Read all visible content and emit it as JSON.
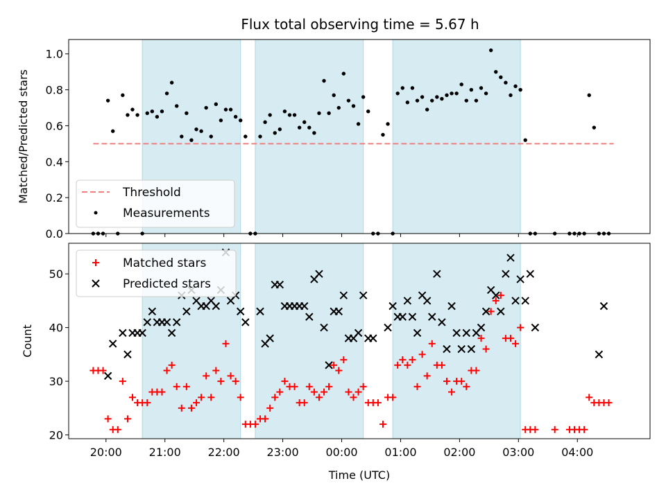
{
  "chart_data": [
    {
      "type": "scatter",
      "title": "Flux total observing time = 5.67 h",
      "xlabel": "",
      "ylabel": "Matched/Predicted stars",
      "ylim": [
        0,
        1.08
      ],
      "xlim": [
        "19:22",
        "05:14"
      ],
      "yticks": [
        "0.0",
        "0.2",
        "0.4",
        "0.6",
        "0.8",
        "1.0"
      ],
      "grid": false,
      "legend_position": "lower-left",
      "observing_windows": [
        [
          "20:37",
          "22:17"
        ],
        [
          "22:32",
          "00:22"
        ],
        [
          "00:52",
          "03:02"
        ]
      ],
      "series": [
        {
          "name": "Threshold",
          "style": "dashed-line",
          "color": "#f08080",
          "x": [
            "19:47",
            "04:37"
          ],
          "y": [
            0.5,
            0.5
          ]
        },
        {
          "name": "Measurements",
          "style": "dot",
          "color": "#000000",
          "x": [
            "19:47",
            "19:52",
            "19:57",
            "20:02",
            "20:07",
            "20:12",
            "20:17",
            "20:22",
            "20:27",
            "20:32",
            "20:37",
            "20:42",
            "20:47",
            "20:52",
            "20:57",
            "21:02",
            "21:07",
            "21:12",
            "21:17",
            "21:22",
            "21:27",
            "21:32",
            "21:37",
            "21:42",
            "21:47",
            "21:52",
            "21:57",
            "22:02",
            "22:07",
            "22:12",
            "22:17",
            "22:22",
            "22:27",
            "22:32",
            "22:37",
            "22:42",
            "22:47",
            "22:52",
            "22:57",
            "23:02",
            "23:07",
            "23:12",
            "23:17",
            "23:22",
            "23:27",
            "23:32",
            "23:37",
            "23:42",
            "23:47",
            "23:52",
            "23:57",
            "00:02",
            "00:07",
            "00:12",
            "00:17",
            "00:22",
            "00:27",
            "00:32",
            "00:37",
            "00:42",
            "00:47",
            "00:52",
            "00:57",
            "01:02",
            "01:07",
            "01:12",
            "01:17",
            "01:22",
            "01:27",
            "01:32",
            "01:37",
            "01:42",
            "01:47",
            "01:52",
            "01:57",
            "02:02",
            "02:07",
            "02:12",
            "02:17",
            "02:22",
            "02:27",
            "02:32",
            "02:37",
            "02:42",
            "02:47",
            "02:52",
            "02:57",
            "03:02",
            "03:07",
            "03:12",
            "03:17",
            "03:37",
            "03:52",
            "03:57",
            "04:02",
            "04:07",
            "04:12",
            "04:17",
            "04:22",
            "04:27",
            "04:32"
          ],
          "y": [
            0,
            0,
            0,
            0.74,
            0.57,
            0,
            0.77,
            0.66,
            0.69,
            0.66,
            0,
            0.67,
            0.68,
            0.65,
            0.68,
            0.78,
            0.84,
            0.71,
            0.54,
            0.67,
            0.52,
            0.58,
            0.57,
            0.7,
            0.54,
            0.72,
            0.63,
            0.69,
            0.69,
            0.65,
            0.63,
            0.54,
            0,
            0,
            0.54,
            0.62,
            0.66,
            0.56,
            0.58,
            0.68,
            0.66,
            0.66,
            0.59,
            0.62,
            0.59,
            0.56,
            0.67,
            0.85,
            0.67,
            0.77,
            0.7,
            0.89,
            0.74,
            0.71,
            0.61,
            0.76,
            0.68,
            0,
            0,
            0.55,
            0.61,
            0,
            0.78,
            0.81,
            0.73,
            0.81,
            0.74,
            0.76,
            0.69,
            0.74,
            0.76,
            0.75,
            0.77,
            0.78,
            0.78,
            0.83,
            0.74,
            0.8,
            0.74,
            0.81,
            0.78,
            1.02,
            0.9,
            0.87,
            0.84,
            0.77,
            0.82,
            0.8,
            0.52,
            0,
            0,
            0,
            0,
            0,
            0,
            0,
            0.77,
            0.59,
            0,
            0,
            0
          ]
        }
      ]
    },
    {
      "type": "scatter",
      "title": "",
      "xlabel": "Time (UTC)",
      "ylabel": "Count",
      "ylim": [
        19.3,
        55.7
      ],
      "xlim": [
        "19:22",
        "05:14"
      ],
      "xticks": [
        "20:00",
        "21:00",
        "22:00",
        "23:00",
        "00:00",
        "01:00",
        "02:00",
        "03:00",
        "04:00"
      ],
      "yticks": [
        "20",
        "30",
        "40",
        "50"
      ],
      "grid": false,
      "legend_position": "top-left",
      "observing_windows": [
        [
          "20:37",
          "22:17"
        ],
        [
          "22:32",
          "00:22"
        ],
        [
          "00:52",
          "03:02"
        ]
      ],
      "series": [
        {
          "name": "Matched stars",
          "style": "plus",
          "color": "#ff0000",
          "x": [
            "19:47",
            "19:52",
            "19:57",
            "20:02",
            "20:07",
            "20:12",
            "20:17",
            "20:22",
            "20:27",
            "20:32",
            "20:37",
            "20:42",
            "20:47",
            "20:52",
            "20:57",
            "21:02",
            "21:07",
            "21:12",
            "21:17",
            "21:22",
            "21:27",
            "21:32",
            "21:37",
            "21:42",
            "21:47",
            "21:52",
            "21:57",
            "22:02",
            "22:07",
            "22:12",
            "22:17",
            "22:22",
            "22:27",
            "22:32",
            "22:37",
            "22:42",
            "22:47",
            "22:52",
            "22:57",
            "23:02",
            "23:07",
            "23:12",
            "23:17",
            "23:22",
            "23:27",
            "23:32",
            "23:37",
            "23:42",
            "23:47",
            "23:52",
            "23:57",
            "00:02",
            "00:07",
            "00:12",
            "00:17",
            "00:22",
            "00:27",
            "00:32",
            "00:37",
            "00:42",
            "00:47",
            "00:52",
            "00:57",
            "01:02",
            "01:07",
            "01:12",
            "01:17",
            "01:22",
            "01:27",
            "01:32",
            "01:37",
            "01:42",
            "01:47",
            "01:52",
            "01:57",
            "02:02",
            "02:07",
            "02:12",
            "02:17",
            "02:22",
            "02:27",
            "02:32",
            "02:37",
            "02:42",
            "02:47",
            "02:52",
            "02:57",
            "03:02",
            "03:07",
            "03:12",
            "03:17",
            "03:37",
            "03:52",
            "03:57",
            "04:02",
            "04:07",
            "04:12",
            "04:17",
            "04:22",
            "04:27",
            "04:32"
          ],
          "y": [
            32,
            32,
            32,
            23,
            21,
            21,
            30,
            23,
            27,
            26,
            26,
            26,
            28,
            28,
            28,
            32,
            33,
            29,
            25,
            29,
            25,
            26,
            27,
            31,
            27,
            32,
            30,
            37,
            31,
            30,
            27,
            22,
            22,
            22,
            23,
            23,
            25,
            27,
            28,
            30,
            29,
            29,
            26,
            26,
            29,
            28,
            27,
            28,
            29,
            33,
            32,
            34,
            28,
            27,
            28,
            29,
            26,
            26,
            26,
            22,
            27,
            27,
            33,
            34,
            33,
            34,
            29,
            35,
            31,
            37,
            33,
            33,
            30,
            28,
            30,
            30,
            29,
            32,
            32,
            38,
            36,
            43,
            45,
            46,
            38,
            38,
            37,
            40,
            21,
            21,
            21,
            21,
            21,
            21,
            21,
            21,
            27,
            26,
            26,
            26,
            26
          ]
        },
        {
          "name": "Predicted stars",
          "style": "x",
          "color": "#000000",
          "x": [
            "19:47",
            "19:52",
            "19:57",
            "20:02",
            "20:07",
            "20:12",
            "20:17",
            "20:22",
            "20:27",
            "20:32",
            "20:37",
            "20:42",
            "20:47",
            "20:52",
            "20:57",
            "21:02",
            "21:07",
            "21:12",
            "21:17",
            "21:22",
            "21:27",
            "21:32",
            "21:37",
            "21:42",
            "21:47",
            "21:52",
            "21:57",
            "22:02",
            "22:07",
            "22:12",
            "22:17",
            "22:22",
            "22:27",
            "22:32",
            "22:37",
            "22:42",
            "22:47",
            "22:52",
            "22:57",
            "23:02",
            "23:07",
            "23:12",
            "23:17",
            "23:22",
            "23:27",
            "23:32",
            "23:37",
            "23:42",
            "23:47",
            "23:52",
            "23:57",
            "00:02",
            "00:07",
            "00:12",
            "00:17",
            "00:22",
            "00:27",
            "00:32",
            "00:37",
            "00:42",
            "00:47",
            "00:52",
            "00:57",
            "01:02",
            "01:07",
            "01:12",
            "01:17",
            "01:22",
            "01:27",
            "01:32",
            "01:37",
            "01:42",
            "01:47",
            "01:52",
            "01:57",
            "02:02",
            "02:07",
            "02:12",
            "02:17",
            "02:22",
            "02:27",
            "02:32",
            "02:37",
            "02:42",
            "02:47",
            "02:52",
            "02:57",
            "03:02",
            "03:07",
            "03:12",
            "03:17",
            "03:37",
            "03:52",
            "03:57",
            "04:02",
            "04:07",
            "04:12",
            "04:17",
            "04:22",
            "04:27",
            "04:32"
          ],
          "y": [
            null,
            null,
            null,
            31,
            37,
            null,
            39,
            35,
            39,
            39,
            39,
            41,
            43,
            41,
            41,
            41,
            39,
            41,
            46,
            43,
            47,
            45,
            44,
            44,
            45,
            44,
            47,
            54,
            45,
            46,
            43,
            41,
            null,
            null,
            43,
            37,
            38,
            48,
            48,
            44,
            44,
            44,
            44,
            44,
            42,
            49,
            50,
            40,
            33,
            43,
            43,
            46,
            38,
            38,
            39,
            46,
            38,
            38,
            null,
            null,
            40,
            44,
            42,
            42,
            45,
            42,
            39,
            46,
            45,
            42,
            50,
            41,
            36,
            44,
            39,
            36,
            39,
            36,
            39,
            40,
            43,
            47,
            46,
            43,
            50,
            53,
            45,
            49,
            45,
            50,
            40,
            null,
            null,
            null,
            null,
            null,
            null,
            null,
            35,
            44,
            null
          ]
        }
      ]
    }
  ]
}
